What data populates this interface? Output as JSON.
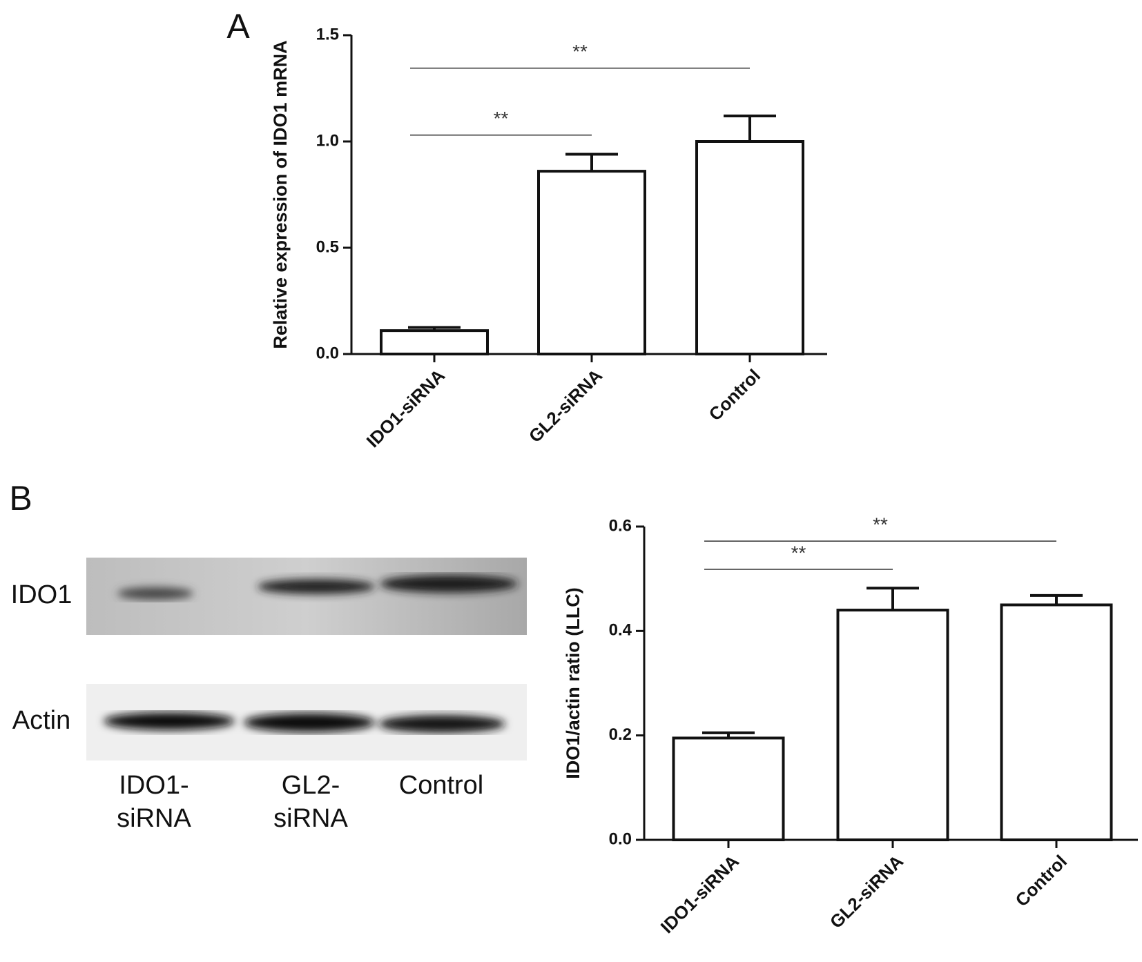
{
  "chart_data": [
    {
      "type": "bar",
      "panel": "A",
      "ylabel": "Relative expression of IDO1 mRNA",
      "categories": [
        "IDO1-siRNA",
        "GL2-siRNA",
        "Control"
      ],
      "values": [
        0.11,
        0.86,
        1.0
      ],
      "errors": [
        0.015,
        0.08,
        0.12
      ],
      "color": "#ffffff",
      "ylim": [
        0,
        1.5
      ],
      "yticks": [
        {
          "value": 0,
          "label": "0.0"
        },
        0.5,
        {
          "value": 1,
          "label": "1.0"
        },
        1.5
      ],
      "annotations": [
        {
          "text": "**",
          "between": [
            "IDO1-siRNA",
            "GL2-siRNA"
          ]
        },
        {
          "text": "**",
          "between": [
            "IDO1-siRNA",
            "Control"
          ]
        }
      ]
    },
    {
      "type": "bar",
      "panel": "B",
      "ylabel": "IDO1/actin ratio (LLC)",
      "categories": [
        "IDO1-siRNA",
        "GL2-siRNA",
        "Control"
      ],
      "values": [
        0.195,
        0.44,
        0.45
      ],
      "errors": [
        0.01,
        0.042,
        0.018
      ],
      "color": "#ffffff",
      "ylim": [
        0,
        0.6
      ],
      "yticks": [
        {
          "value": 0,
          "label": "0.0"
        },
        0.2,
        0.4,
        0.6
      ],
      "annotations": [
        {
          "text": "**",
          "between": [
            "IDO1-siRNA",
            "GL2-siRNA"
          ]
        },
        {
          "text": "**",
          "between": [
            "IDO1-siRNA",
            "Control"
          ]
        }
      ]
    }
  ],
  "blot": {
    "rows": [
      "IDO1",
      "Actin"
    ],
    "lanes": [
      [
        "IDO1-",
        "siRNA"
      ],
      [
        "GL2-",
        "siRNA"
      ],
      [
        "Control"
      ]
    ]
  }
}
